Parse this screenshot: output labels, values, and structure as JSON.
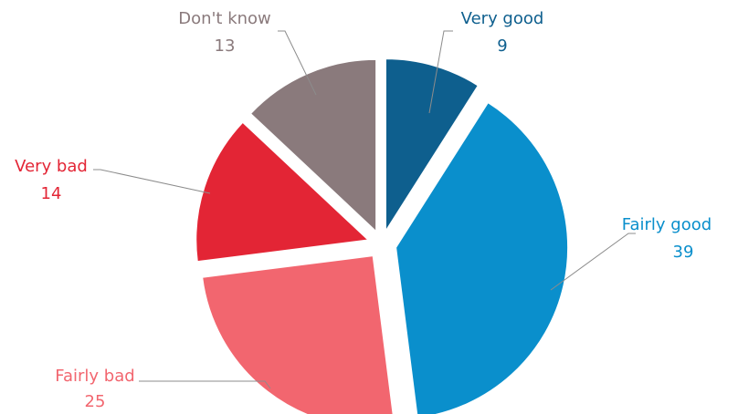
{
  "chart_data": {
    "type": "pie",
    "style": "exploded",
    "title": "",
    "slices": [
      {
        "label": "Very good",
        "value": 9,
        "color": "#0e5f8e"
      },
      {
        "label": "Fairly good",
        "value": 39,
        "color": "#0a8fcc"
      },
      {
        "label": "Fairly bad",
        "value": 25,
        "color": "#f2666f"
      },
      {
        "label": "Very bad",
        "value": 14,
        "color": "#e32535"
      },
      {
        "label": "Don't know",
        "value": 13,
        "color": "#8a7a7c"
      }
    ],
    "leader_line_color": "#8c8c8c"
  }
}
